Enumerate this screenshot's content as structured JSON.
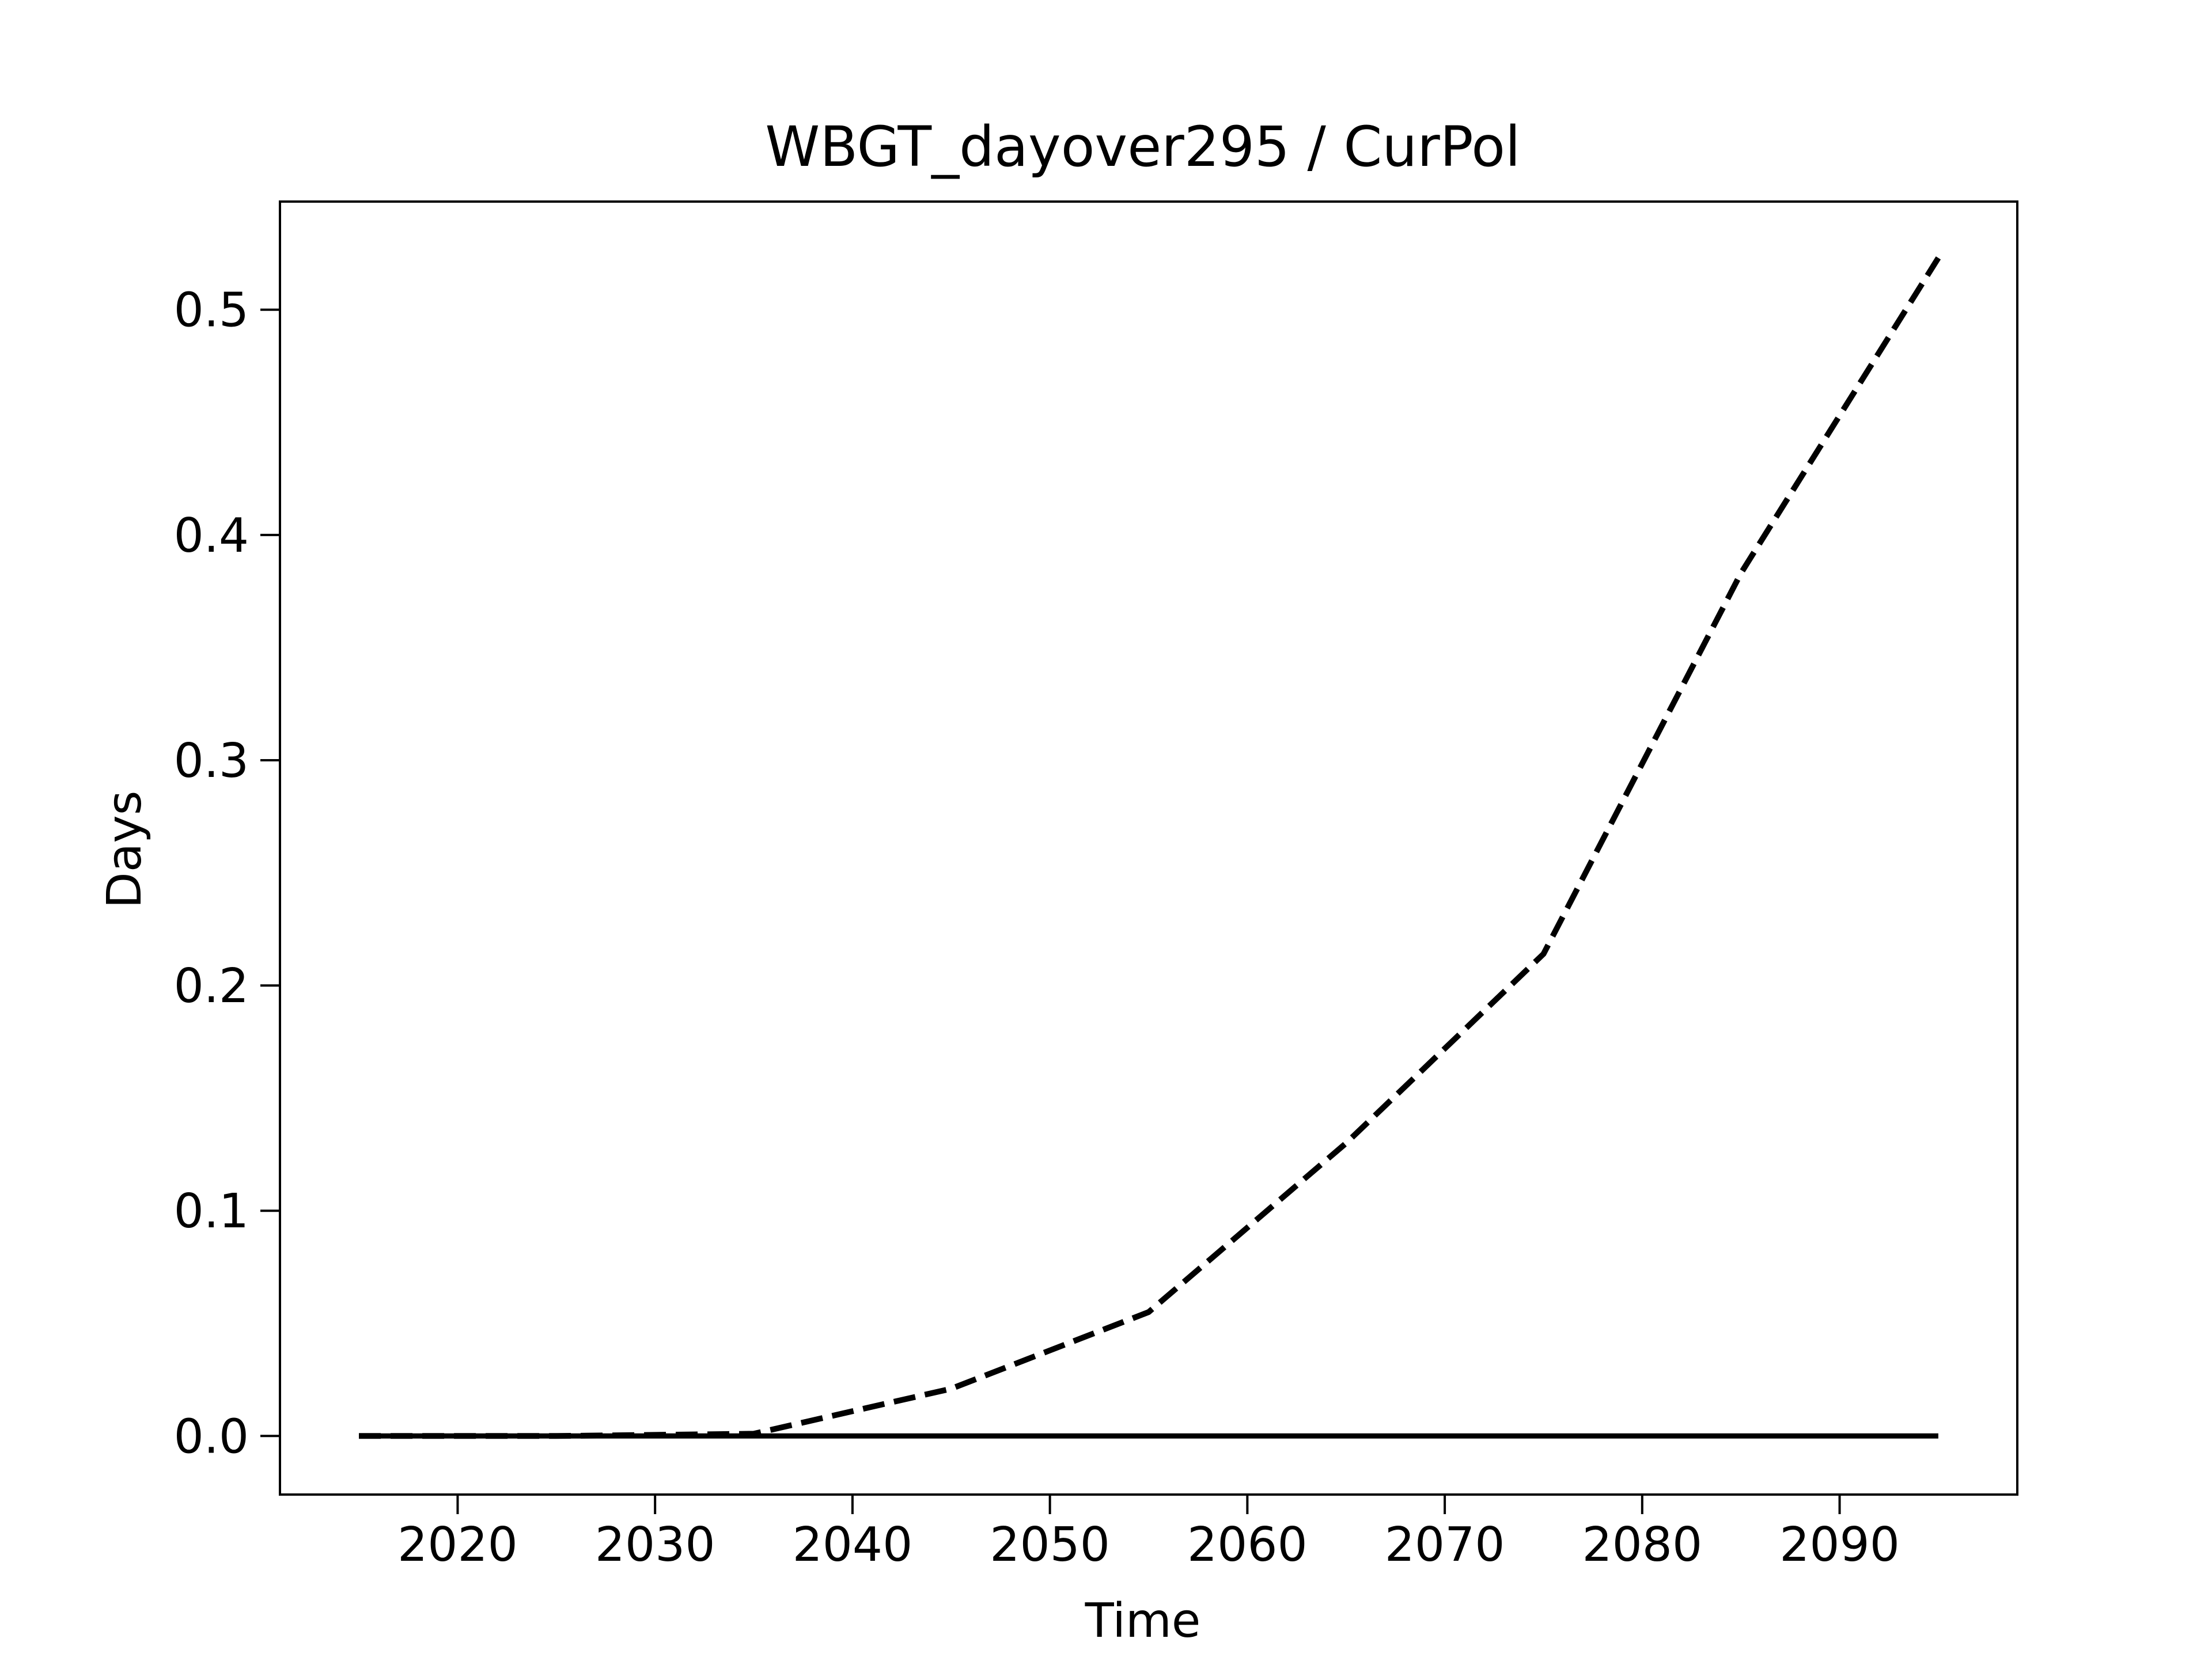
{
  "chart_data": {
    "type": "line",
    "title": "WBGT_dayover295 / CurPol",
    "xlabel": "Time",
    "ylabel": "Days",
    "xlim": [
      2011,
      2099
    ],
    "ylim": [
      -0.026,
      0.548
    ],
    "xticks": [
      2020,
      2030,
      2040,
      2050,
      2060,
      2070,
      2080,
      2090
    ],
    "xtick_labels": [
      "2020",
      "2030",
      "2040",
      "2050",
      "2060",
      "2070",
      "2080",
      "2090"
    ],
    "yticks": [
      0.0,
      0.1,
      0.2,
      0.3,
      0.4,
      0.5
    ],
    "ytick_labels": [
      "0.0",
      "0.1",
      "0.2",
      "0.3",
      "0.4",
      "0.5"
    ],
    "grid": false,
    "legend": "none",
    "series": [
      {
        "style": "dashed",
        "color": "#000000",
        "x": [
          2015,
          2025,
          2035,
          2045,
          2055,
          2065,
          2075,
          2085,
          2095
        ],
        "values": [
          0.0,
          0.0,
          0.001,
          0.021,
          0.055,
          0.13,
          0.214,
          0.383,
          0.523
        ]
      },
      {
        "style": "solid",
        "color": "#000000",
        "x": [
          2015,
          2025,
          2035,
          2045,
          2055,
          2065,
          2075,
          2085,
          2095
        ],
        "values": [
          0.0,
          0.0,
          0.0,
          0.0,
          0.0,
          0.0,
          0.0,
          0.0,
          0.0
        ]
      }
    ]
  }
}
